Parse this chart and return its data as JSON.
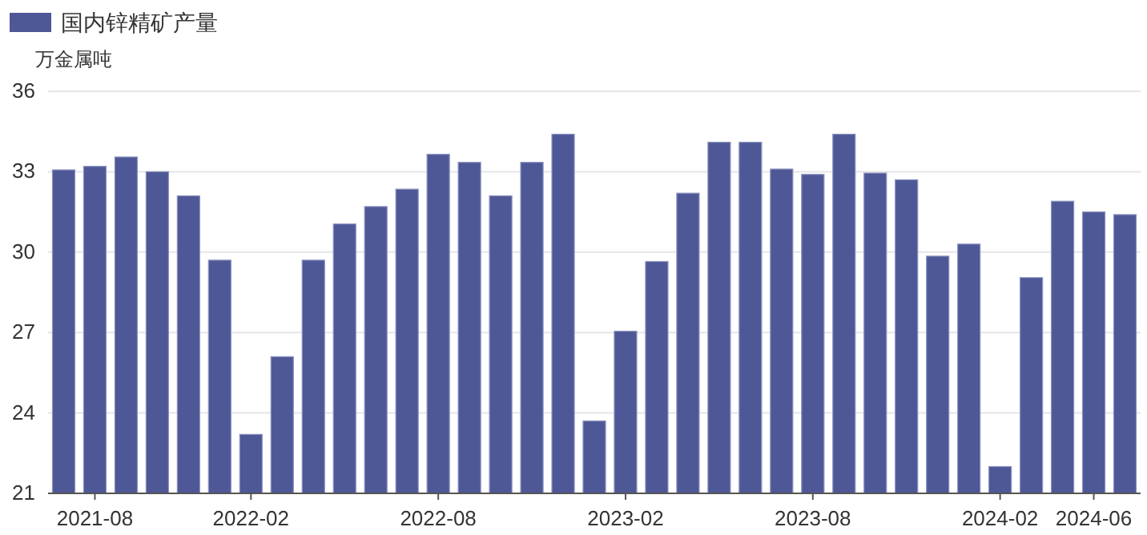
{
  "chart_data": {
    "type": "bar",
    "ylabel": "万金属吨",
    "legend": "top left",
    "grid": "y",
    "categories": [
      null,
      "2021-08",
      null,
      null,
      null,
      null,
      "2022-02",
      null,
      null,
      null,
      null,
      null,
      "2022-08",
      null,
      null,
      null,
      null,
      null,
      "2023-02",
      null,
      null,
      null,
      null,
      null,
      "2023-08",
      null,
      null,
      null,
      null,
      null,
      "2024-02",
      null,
      null,
      "2024-06",
      null
    ],
    "ylim": [
      21,
      36
    ],
    "yticks": [
      21,
      24,
      27,
      30,
      33,
      36
    ],
    "series": [
      {
        "name": "国内锌精矿产量",
        "color": "#4e5896",
        "values": [
          33.07,
          33.2,
          33.55,
          33.0,
          32.1,
          29.7,
          23.2,
          26.1,
          29.7,
          31.05,
          31.7,
          32.35,
          33.65,
          33.35,
          32.1,
          33.35,
          34.4,
          23.7,
          27.05,
          29.65,
          32.2,
          34.1,
          34.1,
          33.1,
          32.9,
          34.4,
          32.95,
          32.7,
          29.85,
          30.3,
          22.0,
          29.05,
          31.9,
          31.5,
          31.4
        ]
      }
    ]
  }
}
